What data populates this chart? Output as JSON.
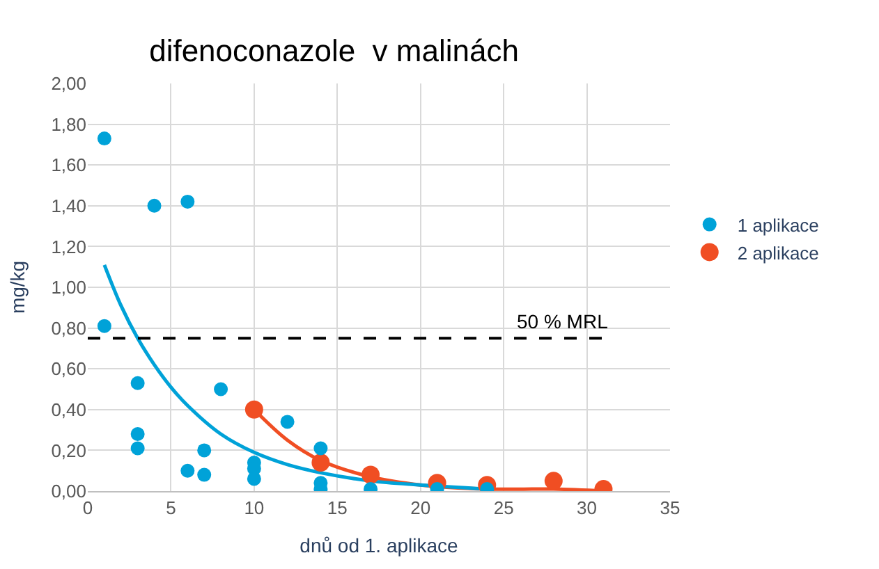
{
  "chart_data": {
    "type": "scatter",
    "title": "difenoconazole  v malinách",
    "xlabel": "dnů od 1. aplikace",
    "ylabel": "mg/kg",
    "series": [
      {
        "name": "1 aplikace",
        "color": "#00a2d8",
        "x": [
          1,
          1,
          3,
          3,
          3,
          4,
          6,
          6,
          7,
          7,
          8,
          10,
          10,
          10,
          12,
          14,
          14,
          14,
          17,
          21,
          24
        ],
        "values": [
          1.73,
          0.81,
          0.53,
          0.28,
          0.21,
          1.4,
          1.42,
          0.1,
          0.2,
          0.08,
          0.5,
          0.14,
          0.11,
          0.06,
          0.34,
          0.21,
          0.04,
          0.01,
          0.01,
          0.01,
          0.01
        ]
      },
      {
        "name": "2 aplikace",
        "color": "#f04e23",
        "x": [
          10,
          14,
          17,
          21,
          24,
          28,
          31
        ],
        "values": [
          0.4,
          0.14,
          0.08,
          0.04,
          0.03,
          0.05,
          0.01
        ]
      },
      {
        "type": "line",
        "marker": "none",
        "color": "#00a2d8",
        "x": [
          1,
          2,
          3,
          4,
          5,
          6,
          8,
          10,
          12,
          14,
          17,
          20,
          24
        ],
        "values": [
          1.11,
          0.91,
          0.75,
          0.62,
          0.51,
          0.42,
          0.28,
          0.19,
          0.13,
          0.09,
          0.05,
          0.03,
          0.01
        ]
      },
      {
        "type": "line",
        "marker": "none",
        "color": "#f04e23",
        "x": [
          10,
          12,
          14,
          17,
          20,
          24,
          28,
          31
        ],
        "values": [
          0.4,
          0.25,
          0.15,
          0.07,
          0.03,
          0.01,
          0.01,
          0.0
        ]
      }
    ],
    "xlim": [
      0,
      35
    ],
    "xticks": [
      0,
      5,
      10,
      15,
      20,
      25,
      30,
      35
    ],
    "ylim": [
      0,
      2
    ],
    "yticks": [
      {
        "value": 0,
        "label": "0,00"
      },
      {
        "value": 0.2,
        "label": "0,20"
      },
      {
        "value": 0.4,
        "label": "0,40"
      },
      {
        "value": 0.6,
        "label": "0,60"
      },
      {
        "value": 0.8,
        "label": "0,80"
      },
      {
        "value": 1.0,
        "label": "1,00"
      },
      {
        "value": 1.2,
        "label": "1,20"
      },
      {
        "value": 1.4,
        "label": "1,40"
      },
      {
        "value": 1.6,
        "label": "1,60"
      },
      {
        "value": 1.8,
        "label": "1,80"
      },
      {
        "value": 2.0,
        "label": "2,00"
      }
    ],
    "ref_lines": [
      {
        "axis": "y",
        "value": 0.75,
        "label": "50 % MRL",
        "color": "#000000",
        "line_style": "dashed"
      }
    ],
    "grid": true,
    "legend": "right",
    "marker": "circle"
  }
}
